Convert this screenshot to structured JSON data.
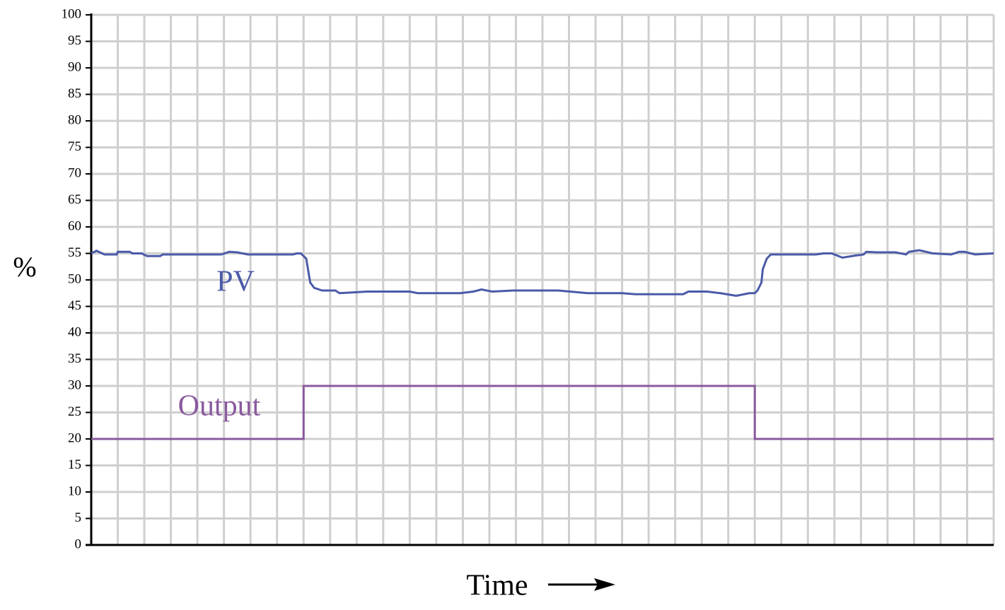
{
  "chart_data": {
    "type": "line",
    "xlabel": "Time",
    "ylabel": "%",
    "xlim": [
      0,
      34
    ],
    "xticks": [
      0,
      1,
      2,
      3,
      4,
      5,
      6,
      7,
      8,
      9,
      10,
      11,
      12,
      13,
      14,
      15,
      16,
      17,
      18,
      19,
      20,
      21,
      22,
      23,
      24,
      25,
      26,
      27,
      28,
      29,
      30,
      31,
      32,
      33,
      34
    ],
    "show_xtick_labels": false,
    "ylim": [
      0,
      100
    ],
    "yticks": [
      0,
      5,
      10,
      15,
      20,
      25,
      30,
      35,
      40,
      45,
      50,
      55,
      60,
      65,
      70,
      75,
      80,
      85,
      90,
      95,
      100
    ],
    "grid": true,
    "series": [
      {
        "name": "PV",
        "color": "#4a5aa8",
        "x": [
          0,
          0.2,
          0.5,
          0.96,
          1.0,
          1.45,
          1.55,
          1.9,
          2.1,
          2.6,
          2.7,
          4.9,
          5.2,
          5.5,
          5.9,
          7.6,
          7.75,
          7.9,
          8.1,
          8.2,
          8.25,
          8.4,
          8.7,
          9.2,
          9.35,
          10.4,
          12.0,
          12.3,
          13.9,
          14.4,
          14.7,
          15.1,
          15.9,
          17.6,
          18.7,
          20.0,
          20.5,
          22.3,
          22.5,
          23.2,
          23.7,
          24.3,
          24.8,
          25.0,
          25.1,
          25.25,
          25.3,
          25.45,
          25.6,
          27.3,
          27.6,
          27.9,
          28.3,
          28.8,
          29.1,
          29.2,
          29.6,
          30.3,
          30.7,
          30.8,
          31.2,
          31.7,
          32.4,
          32.7,
          32.9,
          33.3,
          34
        ],
        "values": [
          55,
          55.5,
          54.8,
          54.8,
          55.3,
          55.3,
          55,
          55,
          54.5,
          54.5,
          54.8,
          54.8,
          55.3,
          55.2,
          54.8,
          54.8,
          55,
          55,
          54,
          51,
          49.5,
          48.5,
          48,
          48,
          47.5,
          47.8,
          47.8,
          47.5,
          47.5,
          47.8,
          48.2,
          47.8,
          48,
          48,
          47.5,
          47.5,
          47.3,
          47.3,
          47.8,
          47.8,
          47.5,
          47,
          47.5,
          47.5,
          48,
          49.5,
          52,
          54,
          54.8,
          54.8,
          55,
          55,
          54.2,
          54.6,
          54.8,
          55.3,
          55.2,
          55.2,
          54.8,
          55.3,
          55.6,
          55,
          54.8,
          55.3,
          55.3,
          54.8,
          55
        ]
      },
      {
        "name": "Output",
        "color": "#8a5a9e",
        "x": [
          0,
          8,
          8,
          25,
          25,
          34
        ],
        "values": [
          20,
          20,
          30,
          30,
          20,
          20
        ]
      }
    ]
  }
}
